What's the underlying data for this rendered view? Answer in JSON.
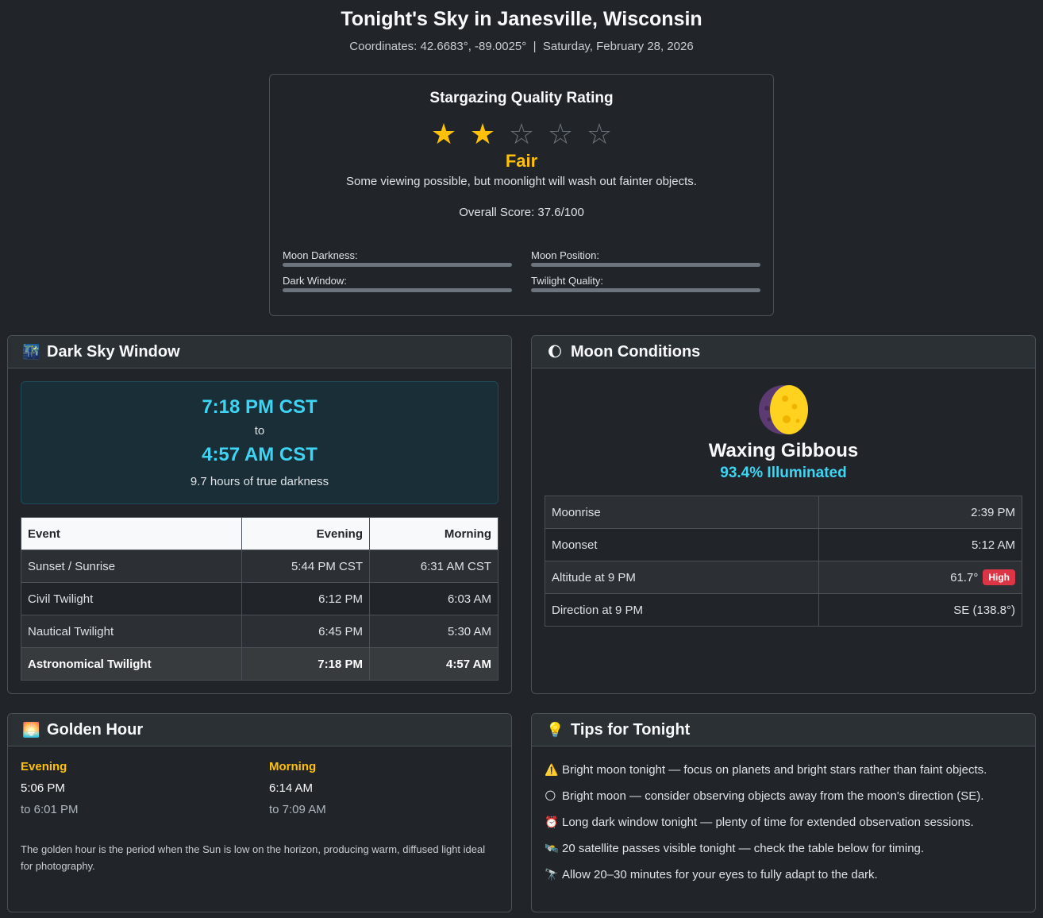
{
  "header": {
    "title": "Tonight's Sky in Janesville, Wisconsin",
    "coordinates": "Coordinates: 42.6683°, -89.0025°",
    "separator": "|",
    "date": "Saturday, February 28, 2026"
  },
  "rating": {
    "title": "Stargazing Quality Rating",
    "stars": 2,
    "max_stars": 5,
    "filled_star": "★",
    "empty_star": "☆",
    "label": "Fair",
    "description": "Some viewing possible, but moonlight will wash out fainter objects.",
    "overall": "Overall Score: 37.6/100",
    "metrics": {
      "moon_darkness": "Moon Darkness:",
      "moon_position": "Moon Position:",
      "dark_window": "Dark Window:",
      "twilight_quality": "Twilight Quality:"
    },
    "colors": {
      "star": "#ffc107",
      "star_empty": "#6c757d",
      "bar": "#6c757d"
    }
  },
  "dark_sky": {
    "title": "Dark Sky Window",
    "icon": "night-city-icon",
    "icon_glyph": "🌃",
    "start": "7:18 PM CST",
    "to": "to",
    "end": "4:57 AM CST",
    "hours": "9.7 hours of true darkness",
    "table": {
      "headers": [
        "Event",
        "Evening",
        "Morning"
      ],
      "rows": [
        [
          "Sunset / Sunrise",
          "5:44 PM CST",
          "6:31 AM CST"
        ],
        [
          "Civil Twilight",
          "6:12 PM",
          "6:03 AM"
        ],
        [
          "Nautical Twilight",
          "6:45 PM",
          "5:30 AM"
        ],
        [
          "Astronomical Twilight",
          "7:18 PM",
          "4:57 AM"
        ]
      ]
    },
    "colors": {
      "time": "#3dd5f3"
    }
  },
  "moon": {
    "title": "Moon Conditions",
    "icon": "moon-icon",
    "icon_glyph": "🌔",
    "phase": "Waxing Gibbous",
    "illumination": "93.4% Illuminated",
    "rows": [
      {
        "label": "Moonrise",
        "value": "2:39 PM",
        "badge": ""
      },
      {
        "label": "Moonset",
        "value": "5:12 AM",
        "badge": ""
      },
      {
        "label": "Altitude at 9 PM",
        "value": "61.7°",
        "badge": "High"
      },
      {
        "label": "Direction at 9 PM",
        "value": "SE (138.8°)",
        "badge": ""
      }
    ],
    "colors": {
      "illumination": "#3dd5f3",
      "badge": "#dc3545"
    }
  },
  "golden_hour": {
    "title": "Golden Hour",
    "icon": "sunrise-icon",
    "icon_glyph": "🌅",
    "evening": {
      "label": "Evening",
      "start": "5:06 PM",
      "end": "to 6:01 PM"
    },
    "morning": {
      "label": "Morning",
      "start": "6:14 AM",
      "end": "to 7:09 AM"
    },
    "note": "The golden hour is the period when the Sun is low on the horizon, producing warm, diffused light ideal for photography.",
    "colors": {
      "label": "#ffc107"
    }
  },
  "tips": {
    "title": "Tips for Tonight",
    "icon": "lightbulb-icon",
    "icon_glyph": "💡",
    "items": [
      {
        "icon": "warning-icon",
        "glyph": "⚠️",
        "text": "Bright moon tonight — focus on planets and bright stars rather than faint objects."
      },
      {
        "icon": "full-moon-icon",
        "glyph": "🌕",
        "text": "Bright moon — consider observing objects away from the moon's direction (SE)."
      },
      {
        "icon": "alarm-clock-icon",
        "glyph": "⏰",
        "text": "Long dark window tonight — plenty of time for extended observation sessions."
      },
      {
        "icon": "satellite-icon",
        "glyph": "🛰️",
        "text": "20 satellite passes visible tonight — check the table below for timing."
      },
      {
        "icon": "telescope-icon",
        "glyph": "🔭",
        "text": "Allow 20–30 minutes for your eyes to fully adapt to the dark."
      }
    ]
  }
}
